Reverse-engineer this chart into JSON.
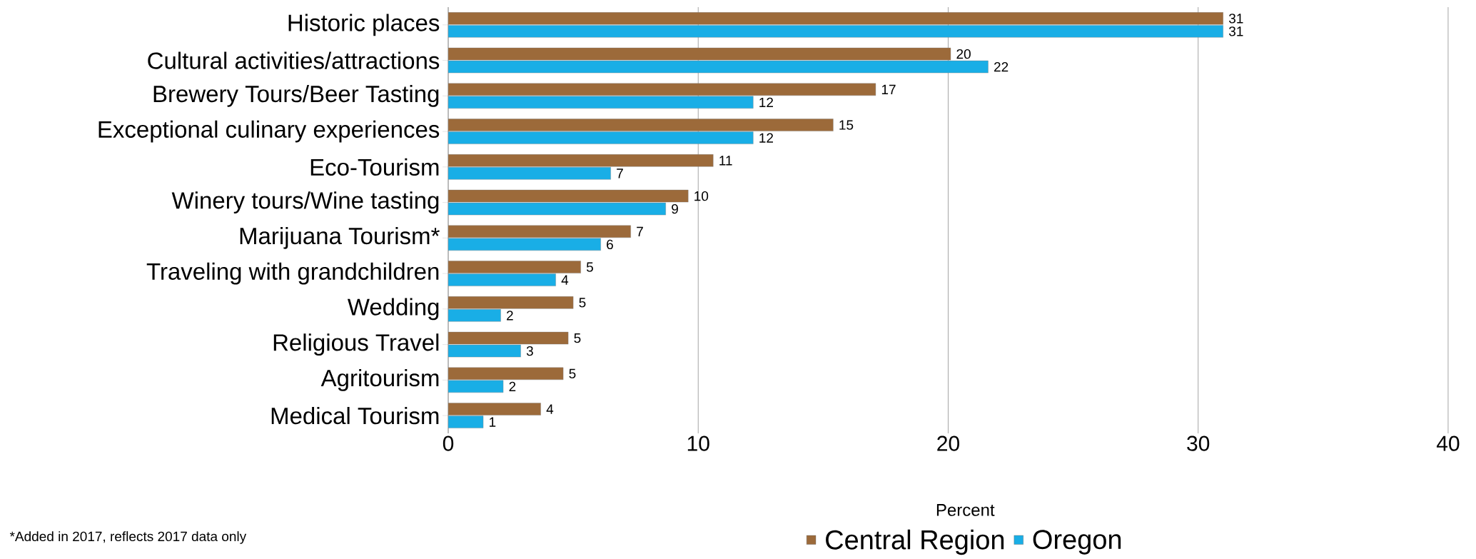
{
  "chart_data": {
    "type": "bar",
    "orientation": "horizontal",
    "xlabel": "Percent",
    "categories": [
      "Historic places",
      "Cultural activities/attractions",
      "Brewery Tours/Beer Tasting",
      "Exceptional culinary experiences",
      "Eco-Tourism",
      "Winery tours/Wine tasting",
      "Marijuana Tourism*",
      "Traveling with grandchildren",
      "Wedding",
      "Religious Travel",
      "Agritourism",
      "Medical Tourism"
    ],
    "series": [
      {
        "name": "Central Region",
        "color": "#9c6a3a",
        "values": [
          31.0,
          20.1,
          17.1,
          15.4,
          10.6,
          9.6,
          7.3,
          5.3,
          5.0,
          4.8,
          4.6,
          3.7
        ],
        "value_labels": [
          "31",
          "20",
          "17",
          "15",
          "11",
          "10",
          "7",
          "5",
          "5",
          "5",
          "5",
          "4"
        ]
      },
      {
        "name": "Oregon",
        "color": "#19aee6",
        "values": [
          31.0,
          21.6,
          12.2,
          12.2,
          6.5,
          8.7,
          6.1,
          4.3,
          2.1,
          2.9,
          2.2,
          1.4
        ],
        "value_labels": [
          "31",
          "22",
          "12",
          "12",
          "7",
          "9",
          "6",
          "4",
          "2",
          "3",
          "2",
          "1"
        ]
      }
    ],
    "xlim": [
      0,
      40
    ],
    "xticks": [
      0,
      10,
      20,
      30,
      40
    ],
    "grid": "x",
    "legend": "bottom",
    "annotations": [
      "*Added in 2017, reflects 2017 data only"
    ]
  }
}
